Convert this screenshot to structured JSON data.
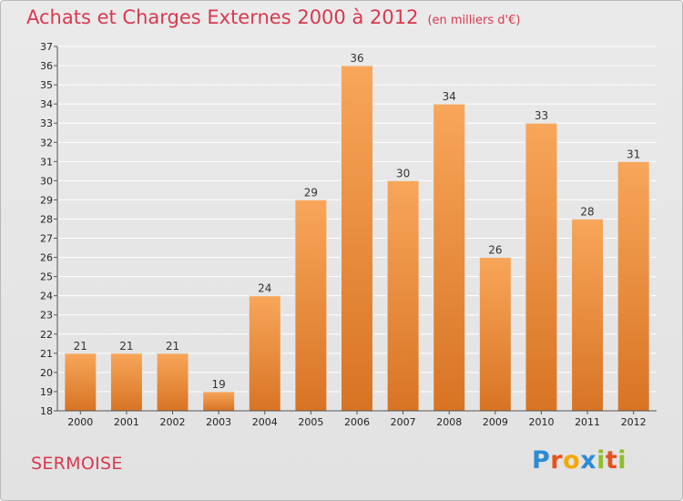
{
  "title": "Achats et Charges Externes 2000 à 2012",
  "unit_label": "(en milliers d'€)",
  "location": "SERMOISE",
  "logo": {
    "text": "Proxiti",
    "colors": [
      "#2d8bd4",
      "#e8511c",
      "#f2a900",
      "#2d8bd4",
      "#8fbe2a",
      "#e8511c",
      "#8fbe2a"
    ]
  },
  "colors": {
    "title": "#d8394f",
    "bar_light": "#f8a65a",
    "bar_dark": "#d87424",
    "grid": "#ffffff"
  },
  "chart_data": {
    "type": "bar",
    "title": "Achats et Charges Externes 2000 à 2012",
    "subtitle": "(en milliers d'€)",
    "categories": [
      "2000",
      "2001",
      "2002",
      "2003",
      "2004",
      "2005",
      "2006",
      "2007",
      "2008",
      "2009",
      "2010",
      "2011",
      "2012"
    ],
    "values": [
      21,
      21,
      21,
      19,
      24,
      29,
      36,
      30,
      34,
      26,
      33,
      28,
      31
    ],
    "ylim": [
      18,
      37
    ],
    "yticks": [
      18,
      19,
      20,
      21,
      22,
      23,
      24,
      25,
      26,
      27,
      28,
      29,
      30,
      31,
      32,
      33,
      34,
      35,
      36,
      37
    ],
    "grid": true,
    "data_labels": true
  }
}
